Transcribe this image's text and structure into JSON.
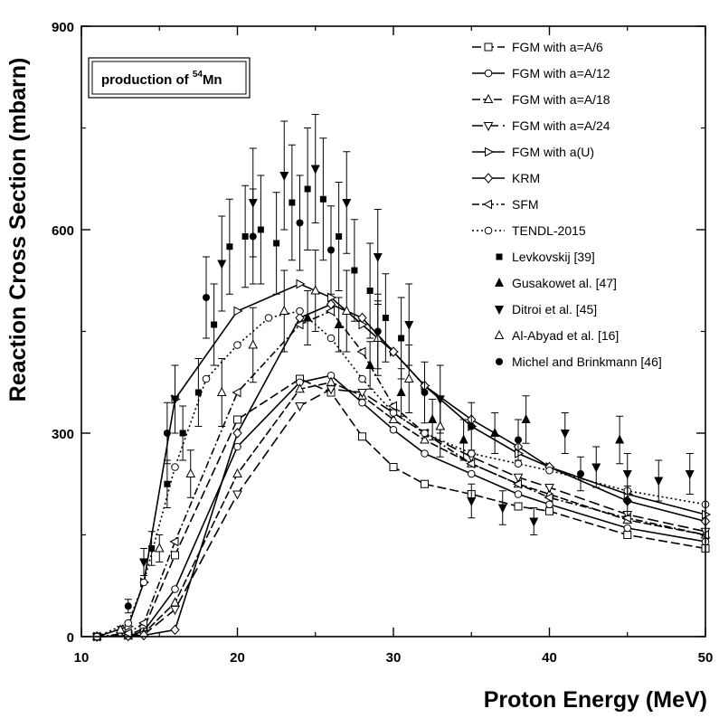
{
  "chart_data": {
    "type": "line",
    "title": "",
    "xlabel": "Proton Energy (MeV)",
    "ylabel": "Reaction Cross Section (mbarn)",
    "xlim": [
      10,
      50
    ],
    "ylim": [
      0,
      900
    ],
    "xticks": [
      "10",
      "20",
      "30",
      "40",
      "50"
    ],
    "yticks": [
      "0",
      "300",
      "600",
      "900"
    ],
    "grid": false,
    "legend_position": "top-right",
    "annotation": {
      "prefix": "production of ",
      "superscript": "54",
      "suffix": "Mn"
    },
    "series": [
      {
        "name": "FGM with a=A/6",
        "style": "line",
        "dash": "10,4",
        "marker": "square-open",
        "x": [
          11,
          13,
          14,
          16,
          20,
          24,
          26,
          28,
          30,
          32,
          35,
          38,
          40,
          45,
          50
        ],
        "y": [
          0,
          2,
          12,
          120,
          320,
          380,
          360,
          295,
          250,
          225,
          210,
          192,
          185,
          150,
          130
        ]
      },
      {
        "name": "FGM with a=A/12",
        "style": "line",
        "dash": "",
        "marker": "circle-open",
        "x": [
          11,
          13,
          14,
          16,
          20,
          24,
          26,
          28,
          30,
          32,
          35,
          38,
          40,
          45,
          50
        ],
        "y": [
          0,
          1,
          8,
          70,
          280,
          375,
          385,
          345,
          305,
          270,
          240,
          210,
          195,
          160,
          140
        ]
      },
      {
        "name": "FGM with a=A/18",
        "style": "line",
        "dash": "9,3",
        "marker": "triangle-up-open",
        "x": [
          11,
          13,
          14,
          16,
          20,
          24,
          26,
          28,
          30,
          32,
          35,
          38,
          40,
          45,
          50
        ],
        "y": [
          0,
          1,
          5,
          50,
          240,
          365,
          375,
          355,
          320,
          290,
          255,
          225,
          210,
          172,
          150
        ]
      },
      {
        "name": "FGM with a=A/24",
        "style": "line",
        "dash": "12,5",
        "marker": "triangle-down-open",
        "x": [
          11,
          13,
          14,
          16,
          20,
          24,
          26,
          28,
          30,
          32,
          35,
          38,
          40,
          45,
          50
        ],
        "y": [
          0,
          1,
          3,
          40,
          210,
          340,
          365,
          360,
          330,
          300,
          265,
          235,
          220,
          180,
          155
        ]
      },
      {
        "name": "FGM with a(U)",
        "style": "line",
        "dash": "",
        "marker": "triangle-right-open",
        "x": [
          11,
          13,
          14,
          16,
          20,
          24,
          26,
          28,
          30,
          32,
          35,
          38,
          40,
          45,
          50
        ],
        "y": [
          0,
          15,
          80,
          350,
          480,
          520,
          500,
          460,
          420,
          370,
          310,
          270,
          250,
          210,
          180
        ]
      },
      {
        "name": "KRM",
        "style": "line",
        "dash": "",
        "marker": "diamond-open",
        "x": [
          11,
          13,
          14,
          16,
          20,
          24,
          26,
          28,
          30,
          32,
          35,
          38,
          40,
          45,
          50
        ],
        "y": [
          0,
          1,
          2,
          10,
          300,
          470,
          490,
          470,
          420,
          370,
          320,
          280,
          250,
          200,
          170
        ]
      },
      {
        "name": "SFM",
        "style": "line",
        "dash": "8,3,2,3",
        "marker": "triangle-left-open",
        "x": [
          11,
          13,
          14,
          16,
          20,
          24,
          26,
          28,
          30,
          32,
          35,
          38,
          40,
          45,
          50
        ],
        "y": [
          0,
          5,
          20,
          140,
          360,
          460,
          480,
          420,
          340,
          300,
          255,
          225,
          205,
          175,
          150
        ]
      },
      {
        "name": "TENDL-2015",
        "style": "line",
        "dash": "2,3",
        "marker": "circle-open",
        "x": [
          11,
          13,
          14,
          16,
          18,
          20,
          22,
          24,
          26,
          28,
          30,
          32,
          35,
          38,
          40,
          45,
          50
        ],
        "y": [
          0,
          20,
          80,
          250,
          380,
          430,
          470,
          480,
          440,
          380,
          330,
          300,
          270,
          255,
          245,
          215,
          195
        ]
      },
      {
        "name": "Levkovskij [39]",
        "style": "points",
        "marker": "square-filled",
        "x": [
          14.5,
          15.5,
          16.5,
          17.5,
          18.5,
          19.5,
          20.5,
          21.5,
          22.5,
          23.5,
          24.5,
          25.5,
          26.5,
          27.5,
          28.5,
          29.5,
          30.5
        ],
        "y": [
          130,
          225,
          300,
          360,
          460,
          575,
          590,
          600,
          580,
          640,
          660,
          645,
          590,
          540,
          510,
          470,
          440
        ],
        "err": [
          25,
          35,
          40,
          50,
          60,
          70,
          75,
          80,
          75,
          85,
          90,
          90,
          80,
          75,
          70,
          65,
          60
        ]
      },
      {
        "name": "Gusakowet al. [47]",
        "style": "points",
        "marker": "triangle-up-filled",
        "x": [
          24.5,
          26.5,
          28.5,
          30.5,
          32.5,
          34.5,
          36.5,
          38.5,
          44.5
        ],
        "y": [
          470,
          460,
          400,
          360,
          320,
          290,
          300,
          320,
          290
        ],
        "err": [
          40,
          40,
          35,
          35,
          30,
          30,
          30,
          35,
          35
        ]
      },
      {
        "name": "Ditroi et al. [45]",
        "style": "points",
        "marker": "triangle-down-filled",
        "x": [
          14,
          16,
          19,
          21,
          23,
          25,
          27,
          29,
          31,
          33,
          35,
          37,
          39,
          41,
          43,
          45,
          47,
          49
        ],
        "y": [
          110,
          350,
          550,
          640,
          680,
          690,
          640,
          560,
          460,
          350,
          200,
          190,
          170,
          300,
          250,
          240,
          230,
          240
        ],
        "err": [
          20,
          50,
          70,
          80,
          80,
          80,
          75,
          70,
          60,
          50,
          25,
          25,
          20,
          30,
          30,
          30,
          30,
          30
        ]
      },
      {
        "name": "Al-Abyad et al. [16]",
        "style": "points",
        "marker": "triangle-up-open-small",
        "x": [
          12.5,
          15,
          17,
          19,
          21,
          23,
          25,
          27,
          29,
          31,
          33
        ],
        "y": [
          10,
          130,
          240,
          360,
          430,
          480,
          510,
          480,
          440,
          380,
          310
        ],
        "err": [
          5,
          20,
          35,
          50,
          55,
          60,
          60,
          60,
          55,
          50,
          45
        ]
      },
      {
        "name": "Michel and Brinkmann [46]",
        "style": "points",
        "marker": "circle-filled",
        "x": [
          13,
          15.5,
          18,
          21,
          24,
          26,
          29,
          32,
          35,
          38,
          42,
          45
        ],
        "y": [
          45,
          300,
          500,
          590,
          610,
          570,
          450,
          360,
          310,
          290,
          240,
          200
        ],
        "err": [
          10,
          45,
          60,
          70,
          70,
          65,
          55,
          45,
          35,
          30,
          25,
          22
        ]
      }
    ]
  }
}
